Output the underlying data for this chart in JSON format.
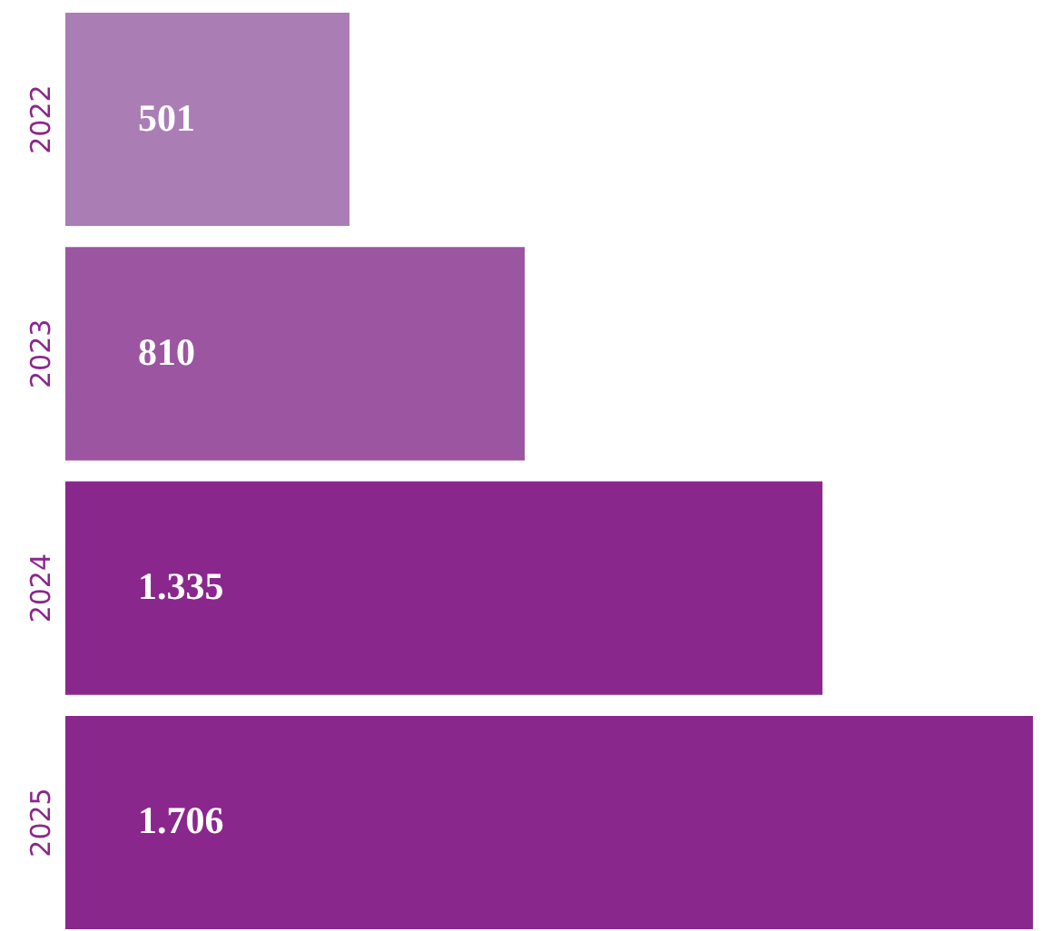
{
  "chart_data": {
    "type": "bar",
    "orientation": "horizontal",
    "categories": [
      "2022",
      "2023",
      "2024",
      "2025"
    ],
    "values": [
      501,
      810,
      1335,
      1706
    ],
    "colors": [
      "#ab7db5",
      "#9b55a1",
      "#8a278d",
      "#8a278d"
    ],
    "value_labels": [
      "501",
      "810",
      "1.335",
      "1.706"
    ],
    "tick_labels": "y"
  }
}
